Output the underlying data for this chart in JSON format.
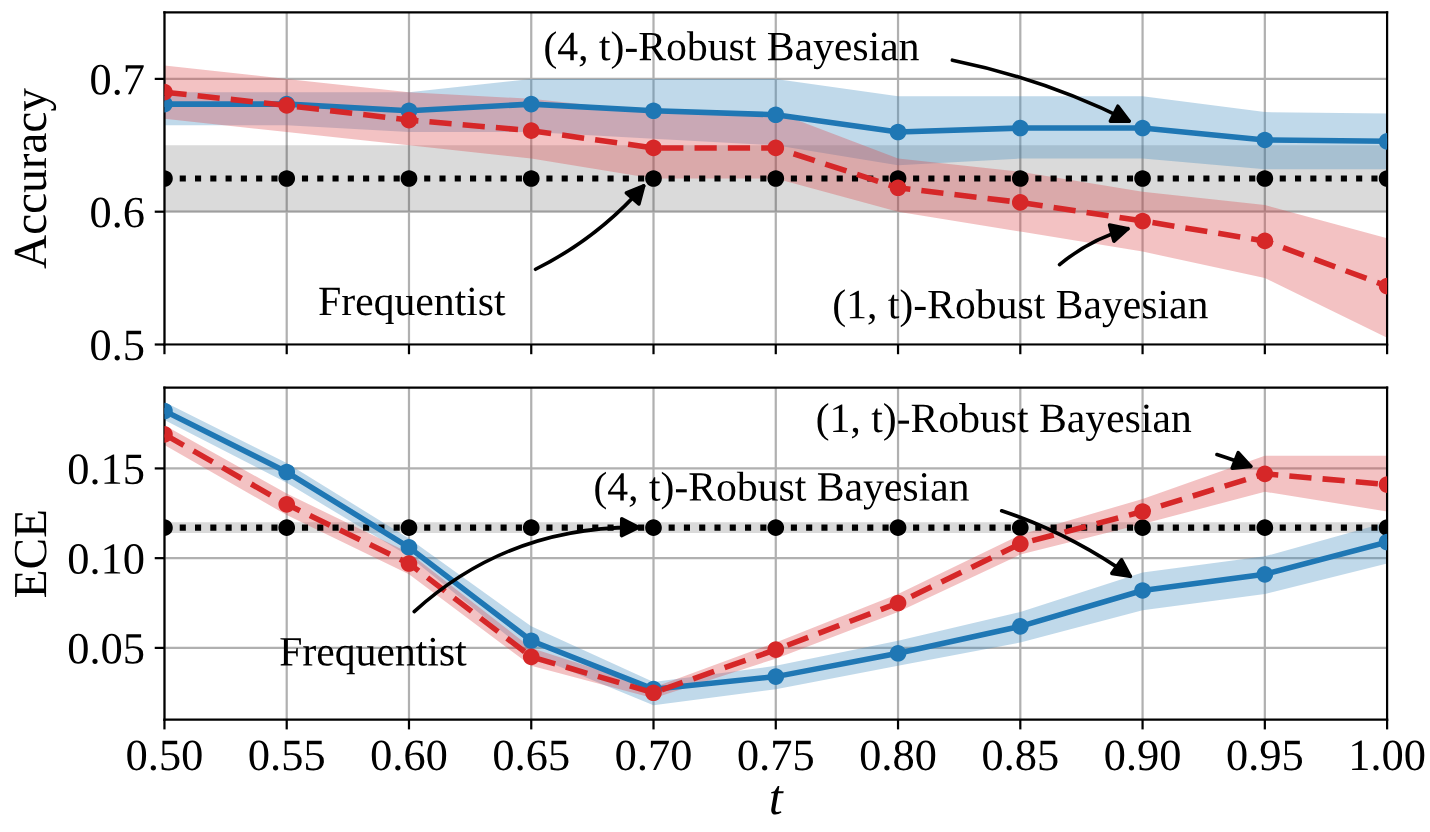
{
  "chart_data": [
    {
      "type": "line",
      "ylabel": "Accuracy",
      "x": [
        0.5,
        0.55,
        0.6,
        0.65,
        0.7,
        0.75,
        0.8,
        0.85,
        0.9,
        0.95,
        1.0
      ],
      "xlim": [
        0.5,
        1.0
      ],
      "xticks": [
        0.5,
        0.55,
        0.6,
        0.65,
        0.7,
        0.75,
        0.8,
        0.85,
        0.9,
        0.95,
        1.0
      ],
      "ylim": [
        0.5,
        0.75
      ],
      "yticks": [
        0.5,
        0.6,
        0.7
      ],
      "grid": true,
      "marker": "circle",
      "tick_labels": "y",
      "series": [
        {
          "color": "#000000",
          "line_style": "dotted",
          "values": [
            0.625,
            0.625,
            0.625,
            0.625,
            0.625,
            0.625,
            0.625,
            0.625,
            0.625,
            0.625,
            0.625
          ],
          "lower": [
            0.6,
            0.6,
            0.6,
            0.6,
            0.6,
            0.6,
            0.6,
            0.6,
            0.6,
            0.6,
            0.6
          ],
          "upper": [
            0.65,
            0.65,
            0.65,
            0.65,
            0.65,
            0.65,
            0.65,
            0.65,
            0.65,
            0.65,
            0.65
          ]
        },
        {
          "color": "#1f77b4",
          "line_style": "solid",
          "values": [
            0.681,
            0.681,
            0.676,
            0.681,
            0.676,
            0.673,
            0.66,
            0.663,
            0.663,
            0.654,
            0.653
          ],
          "lower": [
            0.665,
            0.665,
            0.66,
            0.66,
            0.655,
            0.65,
            0.635,
            0.64,
            0.64,
            0.632,
            0.632
          ],
          "upper": [
            0.69,
            0.69,
            0.69,
            0.7,
            0.7,
            0.7,
            0.687,
            0.687,
            0.687,
            0.675,
            0.674
          ]
        },
        {
          "color": "#d62728",
          "line_style": "dashed",
          "values": [
            0.69,
            0.68,
            0.669,
            0.661,
            0.648,
            0.648,
            0.618,
            0.607,
            0.593,
            0.578,
            0.544
          ],
          "lower": [
            0.67,
            0.66,
            0.65,
            0.64,
            0.625,
            0.625,
            0.6,
            0.585,
            0.57,
            0.55,
            0.505
          ],
          "upper": [
            0.71,
            0.7,
            0.69,
            0.685,
            0.675,
            0.675,
            0.64,
            0.63,
            0.615,
            0.605,
            0.58
          ]
        }
      ],
      "annotations": [
        {
          "text": "(4, t)-Robust Bayesian",
          "x": 0.9,
          "y": 0.663
        },
        {
          "text": "Frequentist",
          "x": 0.7,
          "y": 0.628
        },
        {
          "text": "(1, t)-Robust Bayesian",
          "x": 0.9,
          "y": 0.59
        }
      ]
    },
    {
      "type": "line",
      "ylabel": "ECE",
      "xlabel": "t",
      "x": [
        0.5,
        0.55,
        0.6,
        0.65,
        0.7,
        0.75,
        0.8,
        0.85,
        0.9,
        0.95,
        1.0
      ],
      "xlim": [
        0.5,
        1.0
      ],
      "xticks": [
        {
          "value": 0.5,
          "label": "0.50"
        },
        {
          "value": 0.55,
          "label": "0.55"
        },
        {
          "value": 0.6,
          "label": "0.60"
        },
        {
          "value": 0.65,
          "label": "0.65"
        },
        {
          "value": 0.7,
          "label": "0.70"
        },
        {
          "value": 0.75,
          "label": "0.75"
        },
        {
          "value": 0.8,
          "label": "0.80"
        },
        {
          "value": 0.85,
          "label": "0.85"
        },
        {
          "value": 0.9,
          "label": "0.90"
        },
        {
          "value": 0.95,
          "label": "0.95"
        },
        {
          "value": 1.0,
          "label": "1.00"
        }
      ],
      "ylim": [
        0.01,
        0.195
      ],
      "yticks": [
        0.05,
        {
          "value": 0.1,
          "label": "0.10"
        },
        0.15
      ],
      "grid": true,
      "marker": "circle",
      "series": [
        {
          "color": "#000000",
          "line_style": "dotted",
          "values": [
            0.117,
            0.117,
            0.117,
            0.117,
            0.117,
            0.117,
            0.117,
            0.117,
            0.117,
            0.117,
            0.117
          ],
          "lower": [
            0.114,
            0.114,
            0.114,
            0.114,
            0.114,
            0.114,
            0.114,
            0.114,
            0.114,
            0.114,
            0.114
          ],
          "upper": [
            0.12,
            0.12,
            0.12,
            0.12,
            0.12,
            0.12,
            0.12,
            0.12,
            0.12,
            0.12,
            0.12
          ]
        },
        {
          "color": "#1f77b4",
          "line_style": "solid",
          "values": [
            0.182,
            0.148,
            0.106,
            0.054,
            0.027,
            0.034,
            0.047,
            0.062,
            0.082,
            0.091,
            0.109
          ],
          "lower": [
            0.177,
            0.142,
            0.101,
            0.046,
            0.018,
            0.027,
            0.04,
            0.053,
            0.071,
            0.08,
            0.097
          ],
          "upper": [
            0.187,
            0.153,
            0.111,
            0.062,
            0.031,
            0.04,
            0.054,
            0.07,
            0.092,
            0.101,
            0.12
          ]
        },
        {
          "color": "#d62728",
          "line_style": "dashed",
          "values": [
            0.169,
            0.13,
            0.097,
            0.045,
            0.025,
            0.049,
            0.075,
            0.108,
            0.126,
            0.147,
            0.141
          ],
          "lower": [
            0.163,
            0.124,
            0.091,
            0.04,
            0.022,
            0.044,
            0.07,
            0.102,
            0.119,
            0.137,
            0.126
          ],
          "upper": [
            0.174,
            0.136,
            0.103,
            0.05,
            0.028,
            0.053,
            0.08,
            0.113,
            0.133,
            0.157,
            0.157
          ]
        }
      ],
      "annotations": [
        {
          "text": "(1, t)-Robust Bayesian",
          "x": 0.95,
          "y": 0.148
        },
        {
          "text": "(4, t)-Robust Bayesian",
          "x": 0.9,
          "y": 0.085
        },
        {
          "text": "Frequentist",
          "x": 0.7,
          "y": 0.117
        }
      ]
    }
  ]
}
